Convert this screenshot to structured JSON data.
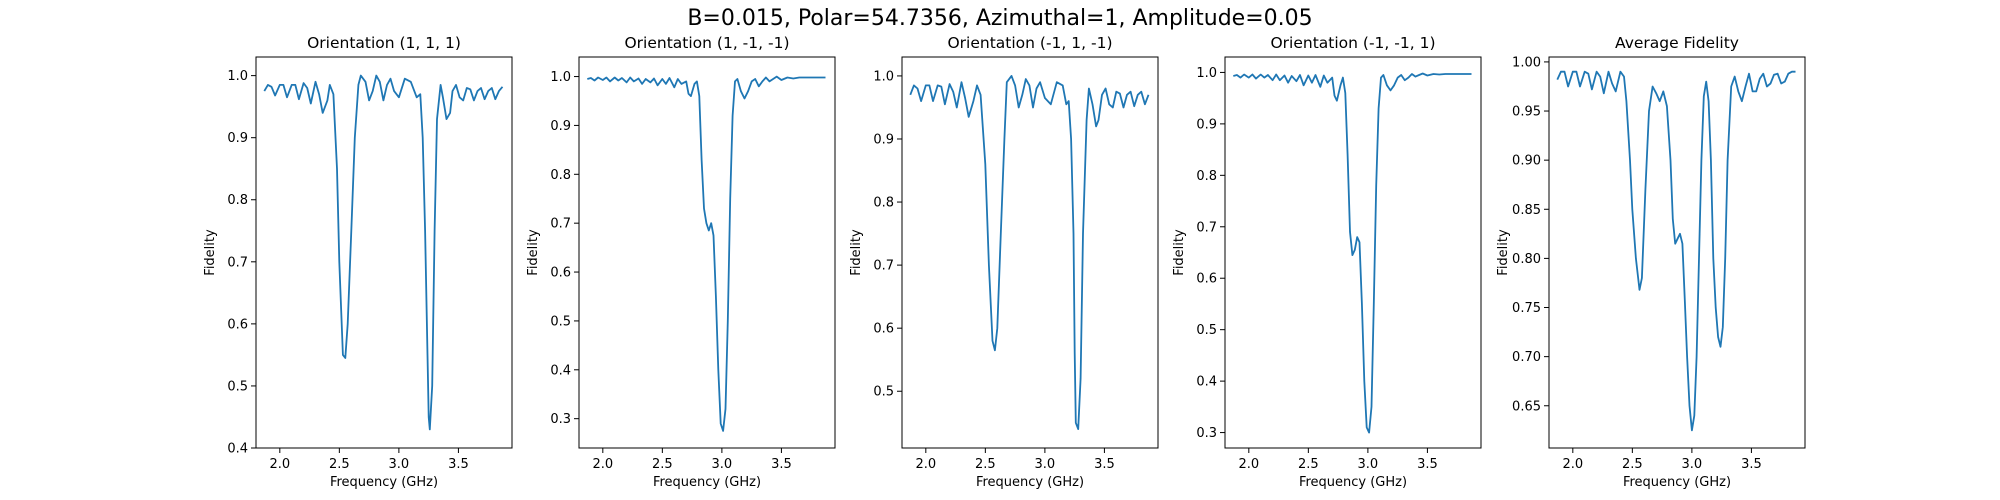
{
  "figure": {
    "title": "B=0.015, Polar=54.7356, Azimuthal=1, Amplitude=0.05"
  },
  "colors": {
    "line": "#1f77b4",
    "axes": "#000000"
  },
  "chart_data": [
    {
      "type": "line",
      "title": "Orientation (1, 1, 1)",
      "xlabel": "Frequency (GHz)",
      "ylabel": "Fidelity",
      "xlim": [
        1.8,
        3.95
      ],
      "ylim": [
        0.4,
        1.03
      ],
      "xticks": [
        2.0,
        2.5,
        3.0,
        3.5
      ],
      "xtick_labels": [
        "2.0",
        "2.5",
        "3.0",
        "3.5"
      ],
      "yticks": [
        0.4,
        0.5,
        0.6,
        0.7,
        0.8,
        0.9,
        1.0
      ],
      "ytick_labels": [
        "0.4",
        "0.5",
        "0.6",
        "0.7",
        "0.8",
        "0.9",
        "1.0"
      ],
      "grid": false,
      "series": [
        {
          "x": [
            1.87,
            1.9,
            1.93,
            1.96,
            2.0,
            2.03,
            2.06,
            2.1,
            2.13,
            2.16,
            2.2,
            2.23,
            2.26,
            2.3,
            2.33,
            2.36,
            2.4,
            2.42,
            2.45,
            2.48,
            2.5,
            2.53,
            2.55,
            2.57,
            2.6,
            2.63,
            2.66,
            2.68,
            2.72,
            2.75,
            2.78,
            2.81,
            2.84,
            2.87,
            2.9,
            2.93,
            2.96,
            3.0,
            3.05,
            3.1,
            3.15,
            3.18,
            3.2,
            3.22,
            3.24,
            3.25,
            3.26,
            3.28,
            3.3,
            3.32,
            3.35,
            3.37,
            3.4,
            3.43,
            3.45,
            3.48,
            3.51,
            3.54,
            3.57,
            3.6,
            3.63,
            3.66,
            3.69,
            3.72,
            3.75,
            3.78,
            3.81,
            3.84,
            3.87
          ],
          "y": [
            0.975,
            0.985,
            0.982,
            0.968,
            0.985,
            0.985,
            0.965,
            0.985,
            0.985,
            0.962,
            0.988,
            0.98,
            0.955,
            0.99,
            0.97,
            0.94,
            0.96,
            0.985,
            0.97,
            0.85,
            0.7,
            0.55,
            0.545,
            0.6,
            0.75,
            0.9,
            0.985,
            1.0,
            0.99,
            0.96,
            0.975,
            1.0,
            0.99,
            0.96,
            0.985,
            0.995,
            0.975,
            0.965,
            0.995,
            0.99,
            0.965,
            0.97,
            0.9,
            0.75,
            0.55,
            0.45,
            0.43,
            0.5,
            0.75,
            0.93,
            0.985,
            0.965,
            0.93,
            0.94,
            0.975,
            0.985,
            0.965,
            0.96,
            0.98,
            0.978,
            0.96,
            0.975,
            0.98,
            0.962,
            0.975,
            0.98,
            0.962,
            0.975,
            0.982
          ]
        }
      ]
    },
    {
      "type": "line",
      "title": "Orientation (1, -1, -1)",
      "xlabel": "Frequency (GHz)",
      "ylabel": "Fidelity",
      "xlim": [
        1.8,
        3.95
      ],
      "ylim": [
        0.24,
        1.04
      ],
      "xticks": [
        2.0,
        2.5,
        3.0,
        3.5
      ],
      "xtick_labels": [
        "2.0",
        "2.5",
        "3.0",
        "3.5"
      ],
      "yticks": [
        0.3,
        0.4,
        0.5,
        0.6,
        0.7,
        0.8,
        0.9,
        1.0
      ],
      "ytick_labels": [
        "0.3",
        "0.4",
        "0.5",
        "0.6",
        "0.7",
        "0.8",
        "0.9",
        "1.0"
      ],
      "grid": false,
      "series": [
        {
          "x": [
            1.87,
            1.9,
            1.93,
            1.96,
            2.0,
            2.03,
            2.06,
            2.1,
            2.13,
            2.16,
            2.2,
            2.23,
            2.26,
            2.3,
            2.33,
            2.36,
            2.4,
            2.43,
            2.46,
            2.5,
            2.53,
            2.56,
            2.6,
            2.63,
            2.66,
            2.7,
            2.72,
            2.74,
            2.77,
            2.79,
            2.81,
            2.83,
            2.85,
            2.87,
            2.89,
            2.91,
            2.93,
            2.95,
            2.97,
            2.99,
            3.01,
            3.03,
            3.05,
            3.07,
            3.09,
            3.11,
            3.13,
            3.16,
            3.19,
            3.22,
            3.25,
            3.28,
            3.31,
            3.34,
            3.37,
            3.4,
            3.43,
            3.46,
            3.5,
            3.55,
            3.6,
            3.65,
            3.7,
            3.75,
            3.8,
            3.87
          ],
          "y": [
            0.995,
            0.997,
            0.992,
            0.998,
            0.993,
            0.998,
            0.99,
            0.998,
            0.992,
            0.997,
            0.988,
            0.998,
            0.99,
            0.996,
            0.985,
            0.995,
            0.988,
            0.996,
            0.982,
            0.995,
            0.985,
            0.997,
            0.978,
            0.995,
            0.985,
            0.99,
            0.965,
            0.96,
            0.985,
            0.99,
            0.96,
            0.83,
            0.73,
            0.7,
            0.685,
            0.7,
            0.675,
            0.55,
            0.4,
            0.29,
            0.275,
            0.32,
            0.5,
            0.75,
            0.92,
            0.99,
            0.995,
            0.97,
            0.955,
            0.97,
            0.99,
            0.995,
            0.98,
            0.99,
            0.998,
            0.99,
            0.995,
            1.0,
            0.993,
            0.998,
            0.996,
            0.998,
            0.998,
            0.998,
            0.998,
            0.998
          ]
        }
      ]
    },
    {
      "type": "line",
      "title": "Orientation (-1, 1, -1)",
      "xlabel": "Frequency (GHz)",
      "ylabel": "Fidelity",
      "xlim": [
        1.8,
        3.95
      ],
      "ylim": [
        0.41,
        1.03
      ],
      "xticks": [
        2.0,
        2.5,
        3.0,
        3.5
      ],
      "xtick_labels": [
        "2.0",
        "2.5",
        "3.0",
        "3.5"
      ],
      "yticks": [
        0.5,
        0.6,
        0.7,
        0.8,
        0.9,
        1.0
      ],
      "ytick_labels": [
        "0.5",
        "0.6",
        "0.7",
        "0.8",
        "0.9",
        "1.0"
      ],
      "grid": false,
      "series": [
        {
          "x": [
            1.87,
            1.9,
            1.93,
            1.96,
            2.0,
            2.03,
            2.06,
            2.1,
            2.13,
            2.16,
            2.2,
            2.23,
            2.26,
            2.3,
            2.33,
            2.36,
            2.4,
            2.43,
            2.46,
            2.5,
            2.53,
            2.56,
            2.58,
            2.6,
            2.63,
            2.66,
            2.68,
            2.72,
            2.75,
            2.78,
            2.81,
            2.84,
            2.87,
            2.9,
            2.93,
            2.96,
            3.0,
            3.05,
            3.1,
            3.15,
            3.18,
            3.2,
            3.22,
            3.24,
            3.25,
            3.26,
            3.28,
            3.3,
            3.32,
            3.35,
            3.37,
            3.4,
            3.43,
            3.45,
            3.48,
            3.51,
            3.54,
            3.57,
            3.6,
            3.63,
            3.66,
            3.69,
            3.72,
            3.75,
            3.78,
            3.81,
            3.84,
            3.87
          ],
          "y": [
            0.97,
            0.985,
            0.98,
            0.96,
            0.985,
            0.985,
            0.96,
            0.985,
            0.983,
            0.955,
            0.987,
            0.975,
            0.95,
            0.99,
            0.965,
            0.935,
            0.96,
            0.985,
            0.97,
            0.86,
            0.7,
            0.58,
            0.565,
            0.6,
            0.75,
            0.9,
            0.99,
            1.0,
            0.985,
            0.95,
            0.97,
            0.995,
            0.985,
            0.95,
            0.98,
            0.99,
            0.965,
            0.955,
            0.99,
            0.985,
            0.955,
            0.96,
            0.9,
            0.75,
            0.56,
            0.45,
            0.44,
            0.52,
            0.75,
            0.93,
            0.98,
            0.955,
            0.92,
            0.93,
            0.97,
            0.98,
            0.955,
            0.95,
            0.975,
            0.972,
            0.95,
            0.97,
            0.975,
            0.952,
            0.97,
            0.975,
            0.955,
            0.97
          ]
        }
      ]
    },
    {
      "type": "line",
      "title": "Orientation (-1, -1, 1)",
      "xlabel": "Frequency (GHz)",
      "ylabel": "Fidelity",
      "xlim": [
        1.8,
        3.95
      ],
      "ylim": [
        0.27,
        1.03
      ],
      "xticks": [
        2.0,
        2.5,
        3.0,
        3.5
      ],
      "xtick_labels": [
        "2.0",
        "2.5",
        "3.0",
        "3.5"
      ],
      "yticks": [
        0.3,
        0.4,
        0.5,
        0.6,
        0.7,
        0.8,
        0.9,
        1.0
      ],
      "ytick_labels": [
        "0.3",
        "0.4",
        "0.5",
        "0.6",
        "0.7",
        "0.8",
        "0.9",
        "1.0"
      ],
      "grid": false,
      "series": [
        {
          "x": [
            1.87,
            1.9,
            1.93,
            1.96,
            2.0,
            2.03,
            2.06,
            2.1,
            2.13,
            2.16,
            2.2,
            2.23,
            2.26,
            2.3,
            2.33,
            2.36,
            2.4,
            2.43,
            2.46,
            2.5,
            2.53,
            2.56,
            2.6,
            2.63,
            2.66,
            2.7,
            2.72,
            2.74,
            2.77,
            2.79,
            2.81,
            2.83,
            2.85,
            2.87,
            2.89,
            2.91,
            2.93,
            2.95,
            2.97,
            2.99,
            3.01,
            3.03,
            3.05,
            3.07,
            3.09,
            3.11,
            3.13,
            3.16,
            3.19,
            3.22,
            3.25,
            3.28,
            3.31,
            3.34,
            3.37,
            3.4,
            3.43,
            3.46,
            3.5,
            3.55,
            3.6,
            3.65,
            3.7,
            3.75,
            3.8,
            3.87
          ],
          "y": [
            0.993,
            0.995,
            0.99,
            0.996,
            0.99,
            0.996,
            0.988,
            0.996,
            0.99,
            0.995,
            0.985,
            0.996,
            0.985,
            0.994,
            0.98,
            0.993,
            0.983,
            0.995,
            0.975,
            0.994,
            0.98,
            0.995,
            0.972,
            0.994,
            0.98,
            0.99,
            0.955,
            0.945,
            0.975,
            0.99,
            0.96,
            0.84,
            0.69,
            0.645,
            0.655,
            0.68,
            0.67,
            0.55,
            0.4,
            0.31,
            0.3,
            0.35,
            0.55,
            0.78,
            0.93,
            0.99,
            0.995,
            0.975,
            0.965,
            0.975,
            0.99,
            0.995,
            0.985,
            0.99,
            0.997,
            0.992,
            0.995,
            0.998,
            0.994,
            0.997,
            0.996,
            0.997,
            0.997,
            0.997,
            0.997,
            0.997
          ]
        }
      ]
    },
    {
      "type": "line",
      "title": "Average Fidelity",
      "xlabel": "Frequency (GHz)",
      "ylabel": "Fidelity",
      "xlim": [
        1.8,
        3.95
      ],
      "ylim": [
        0.607,
        1.005
      ],
      "xticks": [
        2.0,
        2.5,
        3.0,
        3.5
      ],
      "xtick_labels": [
        "2.0",
        "2.5",
        "3.0",
        "3.5"
      ],
      "yticks": [
        0.65,
        0.7,
        0.75,
        0.8,
        0.85,
        0.9,
        0.95,
        1.0
      ],
      "ytick_labels": [
        "0.65",
        "0.70",
        "0.75",
        "0.80",
        "0.85",
        "0.90",
        "0.95",
        "1.00"
      ],
      "grid": false,
      "series": [
        {
          "x": [
            1.87,
            1.9,
            1.93,
            1.96,
            2.0,
            2.03,
            2.06,
            2.1,
            2.13,
            2.16,
            2.2,
            2.23,
            2.26,
            2.3,
            2.33,
            2.36,
            2.4,
            2.43,
            2.45,
            2.48,
            2.5,
            2.53,
            2.56,
            2.58,
            2.61,
            2.64,
            2.67,
            2.7,
            2.73,
            2.76,
            2.79,
            2.82,
            2.84,
            2.86,
            2.88,
            2.9,
            2.92,
            2.94,
            2.96,
            2.98,
            3.0,
            3.02,
            3.04,
            3.06,
            3.08,
            3.1,
            3.12,
            3.14,
            3.16,
            3.18,
            3.2,
            3.22,
            3.24,
            3.26,
            3.28,
            3.3,
            3.33,
            3.36,
            3.39,
            3.42,
            3.45,
            3.48,
            3.51,
            3.54,
            3.57,
            3.6,
            3.63,
            3.66,
            3.69,
            3.72,
            3.75,
            3.78,
            3.81,
            3.84,
            3.87
          ],
          "y": [
            0.982,
            0.99,
            0.99,
            0.975,
            0.99,
            0.99,
            0.975,
            0.99,
            0.988,
            0.972,
            0.99,
            0.985,
            0.968,
            0.99,
            0.978,
            0.97,
            0.99,
            0.985,
            0.96,
            0.9,
            0.85,
            0.8,
            0.768,
            0.78,
            0.87,
            0.95,
            0.975,
            0.968,
            0.96,
            0.97,
            0.955,
            0.9,
            0.84,
            0.815,
            0.82,
            0.825,
            0.815,
            0.76,
            0.7,
            0.65,
            0.625,
            0.64,
            0.7,
            0.8,
            0.9,
            0.965,
            0.98,
            0.96,
            0.9,
            0.8,
            0.75,
            0.72,
            0.71,
            0.73,
            0.8,
            0.9,
            0.975,
            0.985,
            0.97,
            0.96,
            0.975,
            0.988,
            0.97,
            0.97,
            0.983,
            0.988,
            0.975,
            0.978,
            0.987,
            0.988,
            0.978,
            0.98,
            0.988,
            0.99,
            0.99
          ]
        }
      ]
    }
  ]
}
